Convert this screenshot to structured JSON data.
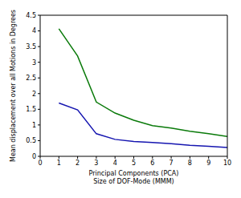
{
  "chart_data": {
    "type": "line",
    "ylabel": "Mean displacement over all Motions in Degrees",
    "xlabel": [
      "Principal Components (PCA)",
      "Size of DOF-Mode (MMM)"
    ],
    "x": [
      1,
      2,
      3,
      4,
      5,
      6,
      7,
      8,
      9,
      10
    ],
    "series": [
      {
        "color": "#0a7a0a",
        "values": [
          4.07,
          3.2,
          1.73,
          1.38,
          1.15,
          0.98,
          0.9,
          0.8,
          0.72,
          0.63
        ]
      },
      {
        "color": "#1515b0",
        "values": [
          1.7,
          1.48,
          0.72,
          0.54,
          0.47,
          0.44,
          0.4,
          0.35,
          0.32,
          0.28
        ]
      }
    ],
    "xlim": [
      0,
      10
    ],
    "xticks": [
      0,
      1,
      2,
      3,
      4,
      5,
      6,
      7,
      8,
      9,
      10
    ],
    "ylim": [
      0,
      4.5
    ],
    "yticks": [
      0,
      0.5,
      1,
      1.5,
      2,
      2.5,
      3,
      3.5,
      4,
      4.5
    ],
    "grid": false
  }
}
